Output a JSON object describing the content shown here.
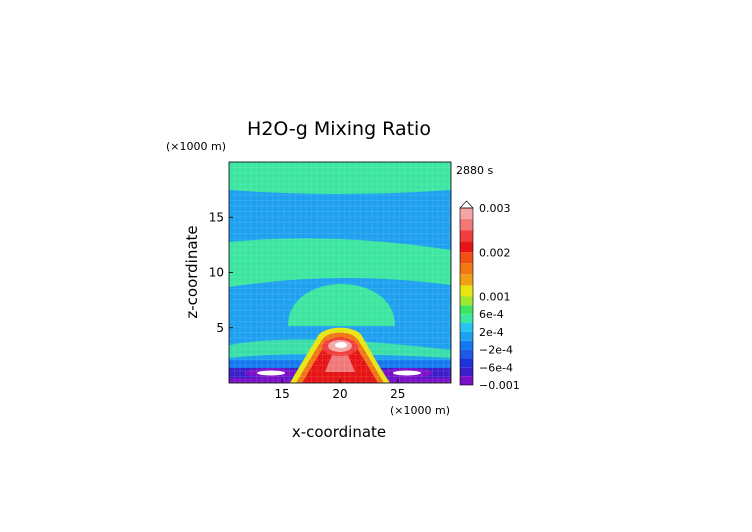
{
  "chart_data": {
    "type": "heatmap",
    "title": "H2O-g Mixing Ratio",
    "time_label": "2880 s",
    "xlabel": "x-coordinate",
    "ylabel": "z-coordinate",
    "x_unit": "(×1000 m)",
    "y_unit": "(×1000 m)",
    "xlim": [
      10.4,
      29.6
    ],
    "ylim": [
      0,
      20
    ],
    "x_ticks": [
      15,
      20,
      25
    ],
    "y_ticks": [
      5,
      10,
      15
    ],
    "x_tick_labels": [
      "15",
      "20",
      "25"
    ],
    "y_tick_labels": [
      "5",
      "10",
      "15"
    ],
    "grid": true,
    "colorbar": {
      "position": "right",
      "levels": [
        -0.001,
        -0.0008,
        -0.0006,
        -0.0004,
        -0.0002,
        0,
        0.0002,
        0.0004,
        0.0006,
        0.0008,
        0.001,
        0.00125,
        0.0015,
        0.00175,
        0.002,
        0.00225,
        0.0025,
        0.00275,
        0.003
      ],
      "colors": [
        "#7a10c8",
        "#3c1ec8",
        "#1e32dc",
        "#1e5ae6",
        "#1478f0",
        "#1ea0f0",
        "#28c3f0",
        "#3ce6a0",
        "#3ce664",
        "#a0e632",
        "#e6e614",
        "#f0a014",
        "#f07814",
        "#f05014",
        "#e61414",
        "#f03c3c",
        "#f07878",
        "#f5a5a5"
      ],
      "labels": [
        {
          "value": 0.003,
          "text": "0.003"
        },
        {
          "value": 0.002,
          "text": "0.002"
        },
        {
          "value": 0.001,
          "text": "0.001"
        },
        {
          "value": 0.0006,
          "text": "6e-4"
        },
        {
          "value": 0.0002,
          "text": "2e-4"
        },
        {
          "value": -0.0002,
          "text": "−2e-4"
        },
        {
          "value": -0.0006,
          "text": "−6e-4"
        },
        {
          "value": -0.001,
          "text": "−0.001"
        }
      ],
      "extend": "max"
    }
  }
}
